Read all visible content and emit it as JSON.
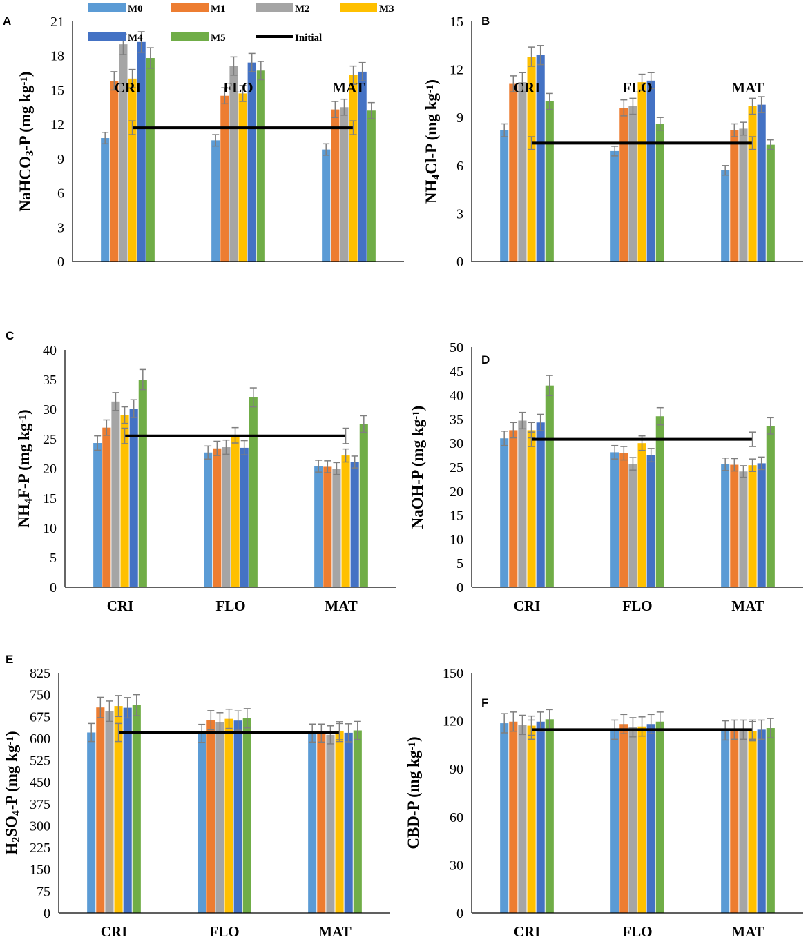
{
  "colors": {
    "M0": "#5b9bd5",
    "M1": "#ed7d31",
    "M2": "#a5a5a5",
    "M3": "#ffc000",
    "M4": "#4472c4",
    "M5": "#70ad47",
    "Initial": "#000000"
  },
  "legend": {
    "items": [
      "M0",
      "M1",
      "M2",
      "M3",
      "M4",
      "M5"
    ],
    "initial_label": "Initial"
  },
  "chart_data": [
    {
      "panel": "A",
      "type": "bar",
      "ylabel": "NaHCO3-P (mg kg-1)",
      "ylim": [
        0,
        21
      ],
      "yticks": [
        0,
        3,
        6,
        9,
        12,
        15,
        18,
        21
      ],
      "categories": [
        "CRI",
        "FLO",
        "MAT"
      ],
      "series": [
        {
          "name": "M0",
          "values": [
            10.8,
            10.6,
            9.8
          ],
          "errors": [
            0.5,
            0.5,
            0.5
          ]
        },
        {
          "name": "M1",
          "values": [
            15.8,
            14.5,
            13.3
          ],
          "errors": [
            0.8,
            0.7,
            0.7
          ]
        },
        {
          "name": "M2",
          "values": [
            19.0,
            17.1,
            13.5
          ],
          "errors": [
            0.9,
            0.8,
            0.7
          ]
        },
        {
          "name": "M3",
          "values": [
            16.0,
            14.7,
            16.3
          ],
          "errors": [
            0.8,
            0.7,
            0.8
          ]
        },
        {
          "name": "M4",
          "values": [
            19.2,
            17.4,
            16.6
          ],
          "errors": [
            0.9,
            0.8,
            0.8
          ]
        },
        {
          "name": "M5",
          "values": [
            17.8,
            16.7,
            13.2
          ],
          "errors": [
            0.9,
            0.8,
            0.7
          ]
        }
      ],
      "initial": {
        "value": 11.7,
        "error": 0.6
      }
    },
    {
      "panel": "B",
      "type": "bar",
      "ylabel": "NH4Cl-P (mg kg-1)",
      "ylim": [
        0,
        15
      ],
      "yticks": [
        0,
        3,
        6,
        9,
        12,
        15
      ],
      "categories": [
        "CRI",
        "FLO",
        "MAT"
      ],
      "series": [
        {
          "name": "M0",
          "values": [
            8.2,
            6.9,
            5.7
          ],
          "errors": [
            0.4,
            0.3,
            0.3
          ]
        },
        {
          "name": "M1",
          "values": [
            11.1,
            9.6,
            8.2
          ],
          "errors": [
            0.5,
            0.5,
            0.4
          ]
        },
        {
          "name": "M2",
          "values": [
            11.2,
            9.7,
            8.3
          ],
          "errors": [
            0.6,
            0.5,
            0.4
          ]
        },
        {
          "name": "M3",
          "values": [
            12.8,
            11.2,
            9.7
          ],
          "errors": [
            0.6,
            0.5,
            0.5
          ]
        },
        {
          "name": "M4",
          "values": [
            12.9,
            11.3,
            9.8
          ],
          "errors": [
            0.6,
            0.5,
            0.5
          ]
        },
        {
          "name": "M5",
          "values": [
            10.0,
            8.6,
            7.3
          ],
          "errors": [
            0.5,
            0.4,
            0.3
          ]
        }
      ],
      "initial": {
        "value": 7.4,
        "error": 0.4
      }
    },
    {
      "panel": "C",
      "type": "bar",
      "ylabel": "NH4F-P (mg kg-1)",
      "ylim": [
        0,
        40
      ],
      "yticks": [
        0,
        5,
        10,
        15,
        20,
        25,
        30,
        35,
        40
      ],
      "categories": [
        "CRI",
        "FLO",
        "MAT"
      ],
      "series": [
        {
          "name": "M0",
          "values": [
            24.3,
            22.7,
            20.4
          ],
          "errors": [
            1.2,
            1.1,
            1.0
          ]
        },
        {
          "name": "M1",
          "values": [
            26.9,
            23.4,
            20.3
          ],
          "errors": [
            1.3,
            1.2,
            1.0
          ]
        },
        {
          "name": "M2",
          "values": [
            31.3,
            23.6,
            20.0
          ],
          "errors": [
            1.5,
            1.2,
            1.0
          ]
        },
        {
          "name": "M3",
          "values": [
            29.0,
            25.6,
            22.2
          ],
          "errors": [
            1.4,
            1.3,
            1.1
          ]
        },
        {
          "name": "M4",
          "values": [
            30.1,
            23.5,
            21.1
          ],
          "errors": [
            1.5,
            1.2,
            1.0
          ]
        },
        {
          "name": "M5",
          "values": [
            35.0,
            32.0,
            27.5
          ],
          "errors": [
            1.7,
            1.6,
            1.4
          ]
        }
      ],
      "initial": {
        "value": 25.5,
        "error": 1.3
      }
    },
    {
      "panel": "D",
      "type": "bar",
      "ylabel": "NaOH-P (mg kg-1)",
      "ylim": [
        0,
        50
      ],
      "yticks": [
        0,
        5,
        10,
        15,
        20,
        25,
        30,
        35,
        40,
        45,
        50
      ],
      "categories": [
        "CRI",
        "FLO",
        "MAT"
      ],
      "series": [
        {
          "name": "M0",
          "values": [
            31.0,
            28.1,
            25.6
          ],
          "errors": [
            1.5,
            1.4,
            1.3
          ]
        },
        {
          "name": "M1",
          "values": [
            32.7,
            27.9,
            25.5
          ],
          "errors": [
            1.6,
            1.4,
            1.3
          ]
        },
        {
          "name": "M2",
          "values": [
            34.7,
            25.7,
            24.1
          ],
          "errors": [
            1.7,
            1.3,
            1.2
          ]
        },
        {
          "name": "M3",
          "values": [
            32.7,
            30.0,
            25.4
          ],
          "errors": [
            1.6,
            1.5,
            1.3
          ]
        },
        {
          "name": "M4",
          "values": [
            34.3,
            27.5,
            25.8
          ],
          "errors": [
            1.7,
            1.4,
            1.3
          ]
        },
        {
          "name": "M5",
          "values": [
            42.0,
            35.6,
            33.6
          ],
          "errors": [
            2.1,
            1.8,
            1.7
          ]
        }
      ],
      "initial": {
        "value": 30.8,
        "error": 1.5
      }
    },
    {
      "panel": "E",
      "type": "bar",
      "ylabel": "H2SO4-P (mg kg-1)",
      "ylim": [
        0,
        825
      ],
      "yticks": [
        0,
        75,
        150,
        225,
        300,
        375,
        450,
        525,
        600,
        675,
        750,
        825
      ],
      "categories": [
        "CRI",
        "FLO",
        "MAT"
      ],
      "series": [
        {
          "name": "M0",
          "values": [
            620,
            617,
            618
          ],
          "errors": [
            31,
            31,
            31
          ]
        },
        {
          "name": "M1",
          "values": [
            706,
            662,
            618
          ],
          "errors": [
            35,
            33,
            31
          ]
        },
        {
          "name": "M2",
          "values": [
            693,
            655,
            612
          ],
          "errors": [
            35,
            33,
            31
          ]
        },
        {
          "name": "M3",
          "values": [
            711,
            667,
            626
          ],
          "errors": [
            36,
            33,
            31
          ]
        },
        {
          "name": "M4",
          "values": [
            705,
            661,
            619
          ],
          "errors": [
            35,
            33,
            31
          ]
        },
        {
          "name": "M5",
          "values": [
            714,
            669,
            627
          ],
          "errors": [
            36,
            33,
            31
          ]
        }
      ],
      "initial": {
        "value": 620,
        "error": 31
      }
    },
    {
      "panel": "F",
      "type": "bar",
      "ylabel": "CBD-P (mg kg-1)",
      "ylim": [
        0,
        150
      ],
      "yticks": [
        0,
        30,
        60,
        90,
        120,
        150
      ],
      "categories": [
        "CRI",
        "FLO",
        "MAT"
      ],
      "series": [
        {
          "name": "M0",
          "values": [
            118.5,
            114.5,
            114.0
          ],
          "errors": [
            6,
            6,
            6
          ]
        },
        {
          "name": "M1",
          "values": [
            119.5,
            118.0,
            114.5
          ],
          "errors": [
            6,
            6,
            6
          ]
        },
        {
          "name": "M2",
          "values": [
            117.5,
            116.0,
            114.5
          ],
          "errors": [
            6,
            6,
            6
          ]
        },
        {
          "name": "M3",
          "values": [
            117.0,
            116.5,
            113.5
          ],
          "errors": [
            6,
            6,
            6
          ]
        },
        {
          "name": "M4",
          "values": [
            119.5,
            118.0,
            114.5
          ],
          "errors": [
            6,
            6,
            6
          ]
        },
        {
          "name": "M5",
          "values": [
            121.0,
            119.5,
            115.5
          ],
          "errors": [
            6,
            6,
            6
          ]
        }
      ],
      "initial": {
        "value": 114.5,
        "error": 6
      }
    }
  ]
}
